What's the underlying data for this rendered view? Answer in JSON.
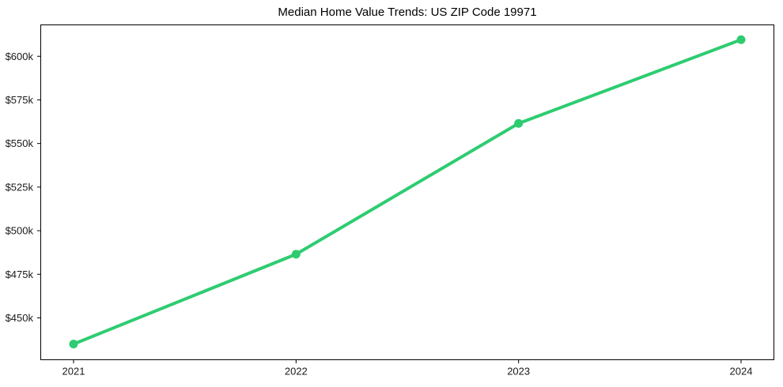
{
  "figure": {
    "background_color": "#ffffff",
    "spine_color": "#000000",
    "tick_color": "#1a1a1a"
  },
  "chart_data": {
    "type": "line",
    "title": "Median Home Value Trends: US ZIP Code 19971",
    "categories": [
      "2021",
      "2022",
      "2023",
      "2024"
    ],
    "series": [
      {
        "name": "Median Home Value",
        "values": [
          435000,
          486500,
          561500,
          609500
        ],
        "color": "#2ecc71",
        "line_width": 4,
        "marker": "circle",
        "marker_radius": 5.5
      }
    ],
    "xlabel": "",
    "ylabel": "",
    "ylim": [
      426000,
      618000
    ],
    "yticks": [
      {
        "value": 450000,
        "label": "$450k"
      },
      {
        "value": 475000,
        "label": "$475k"
      },
      {
        "value": 500000,
        "label": "$500k"
      },
      {
        "value": 525000,
        "label": "$525k"
      },
      {
        "value": 550000,
        "label": "$550k"
      },
      {
        "value": 575000,
        "label": "$575k"
      },
      {
        "value": 600000,
        "label": "$600k"
      }
    ],
    "grid": false,
    "legend_position": "none"
  }
}
